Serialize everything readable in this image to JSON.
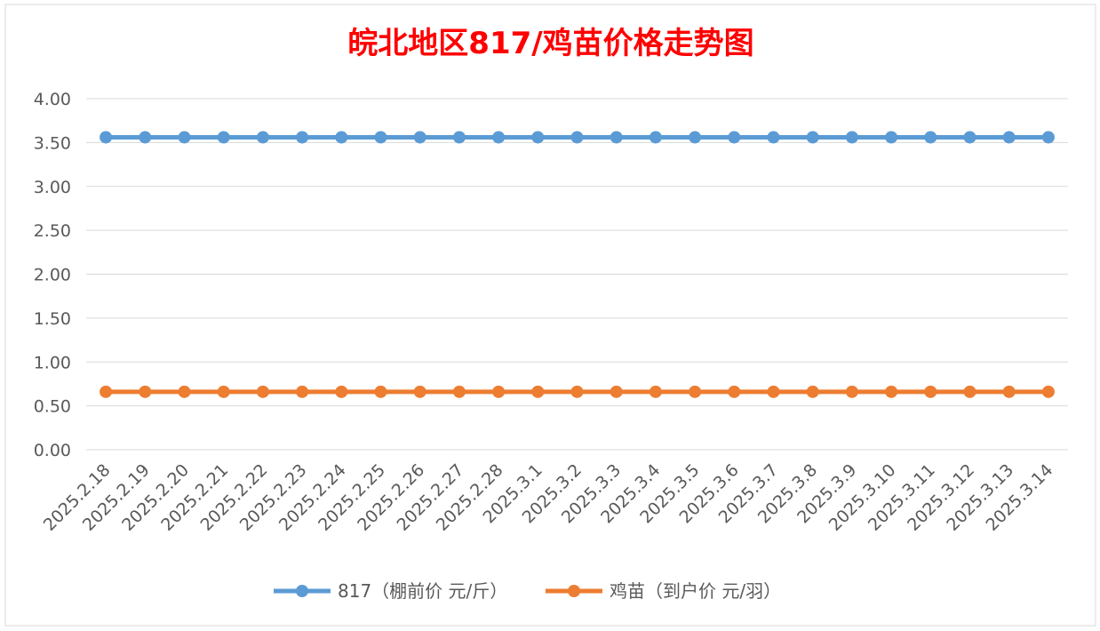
{
  "chart_data": {
    "type": "line",
    "title": "皖北地区817/鸡苗价格走势图",
    "categories": [
      "2025.2.18",
      "2025.2.19",
      "2025.2.20",
      "2025.2.21",
      "2025.2.22",
      "2025.2.23",
      "2025.2.24",
      "2025.2.25",
      "2025.2.26",
      "2025.2.27",
      "2025.2.28",
      "2025.3.1",
      "2025.3.2",
      "2025.3.3",
      "2025.3.4",
      "2025.3.5",
      "2025.3.6",
      "2025.3.7",
      "2025.3.8",
      "2025.3.9",
      "2025.3.10",
      "2025.3.11",
      "2025.3.12",
      "2025.3.13",
      "2025.3.14"
    ],
    "ylim": [
      0,
      4
    ],
    "yticks": [
      "0.00",
      "0.50",
      "1.00",
      "1.50",
      "2.00",
      "2.50",
      "3.00",
      "3.50",
      "4.00"
    ],
    "grid": true,
    "legend": "bottom",
    "series": [
      {
        "name": "817（棚前价 元/斤）",
        "color": "#5b9bd5",
        "values": [
          3.56,
          3.56,
          3.56,
          3.56,
          3.56,
          3.56,
          3.56,
          3.56,
          3.56,
          3.56,
          3.56,
          3.56,
          3.56,
          3.56,
          3.56,
          3.56,
          3.56,
          3.56,
          3.56,
          3.56,
          3.56,
          3.56,
          3.56,
          3.56,
          3.56
        ]
      },
      {
        "name": "鸡苗（到户价 元/羽）",
        "color": "#ed7d31",
        "values": [
          0.66,
          0.66,
          0.66,
          0.66,
          0.66,
          0.66,
          0.66,
          0.66,
          0.66,
          0.66,
          0.66,
          0.66,
          0.66,
          0.66,
          0.66,
          0.66,
          0.66,
          0.66,
          0.66,
          0.66,
          0.66,
          0.66,
          0.66,
          0.66,
          0.66
        ]
      }
    ],
    "title_color": "#ff0000",
    "text_color": "#595959",
    "grid_color": "#d9d9d9"
  }
}
